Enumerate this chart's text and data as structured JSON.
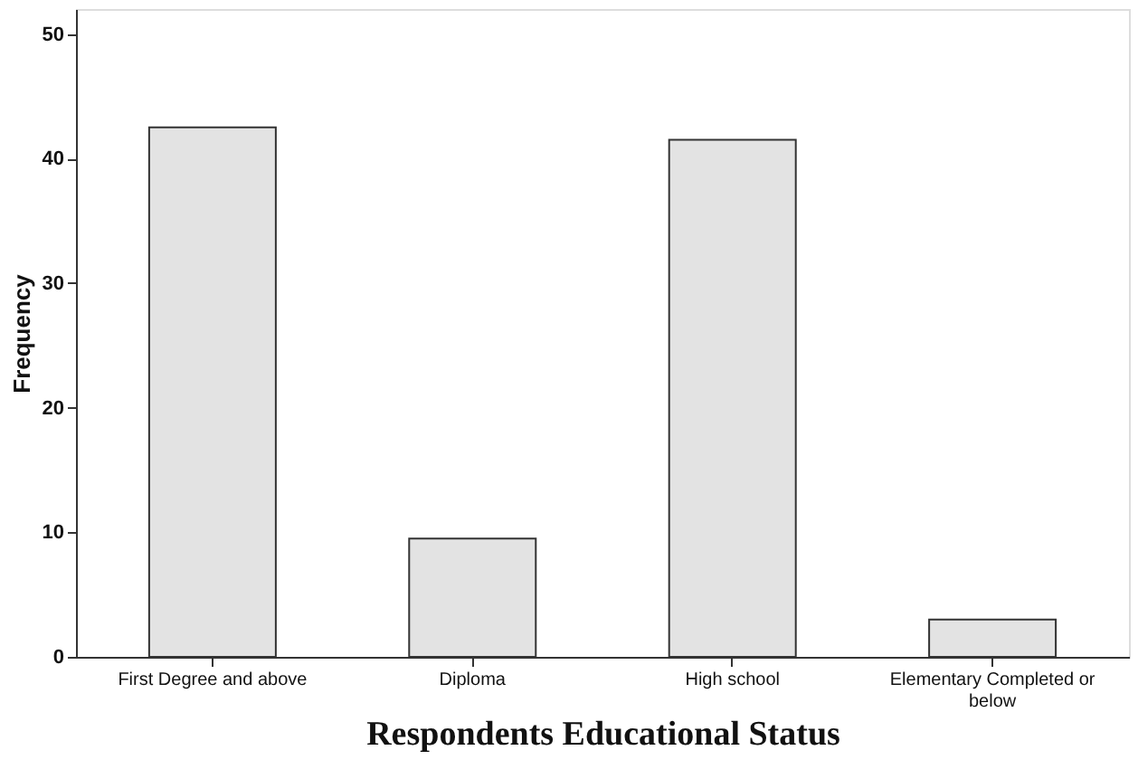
{
  "chart_data": {
    "type": "bar",
    "xlabel": "Respondents Educational Status",
    "ylabel": "Frequency",
    "categories": [
      "First Degree and above",
      "Diploma",
      "High school",
      "Elementary Completed or below"
    ],
    "values": [
      42.5,
      9.5,
      41.5,
      3
    ],
    "color": "#e3e3e3",
    "ylim": [
      0,
      52
    ],
    "yticks": [
      0,
      10,
      20,
      30,
      40,
      50
    ],
    "grid": false
  }
}
